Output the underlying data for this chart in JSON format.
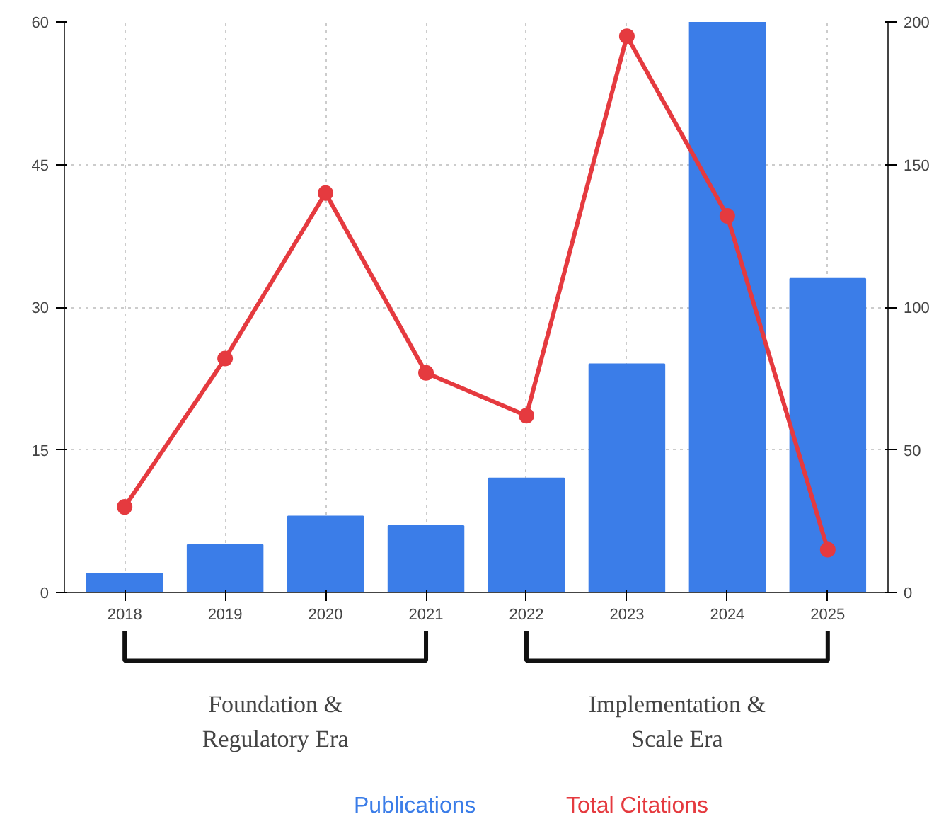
{
  "chart_data": {
    "type": "bar",
    "categories": [
      "2018",
      "2019",
      "2020",
      "2021",
      "2022",
      "2023",
      "2024",
      "2025"
    ],
    "series": [
      {
        "name": "Publications",
        "color": "#3b7de8",
        "values": [
          2,
          5,
          8,
          7,
          12,
          24,
          60,
          33
        ]
      },
      {
        "name": "Total Citations",
        "type": "line",
        "axis": "y2",
        "color": "#e53a3f",
        "marker": "circle",
        "values": [
          30,
          82,
          140,
          77,
          62,
          195,
          132,
          15
        ]
      }
    ],
    "ylim": [
      0,
      60
    ],
    "yticks": [
      0,
      15,
      30,
      45,
      60
    ],
    "y2lim": [
      0,
      200
    ],
    "y2ticks": [
      0,
      50,
      100,
      150,
      200
    ],
    "grid": true,
    "legend": "bottom",
    "annotations": [
      "Foundation &\nRegulatory Era",
      "Implementation &\nScale Era"
    ]
  }
}
